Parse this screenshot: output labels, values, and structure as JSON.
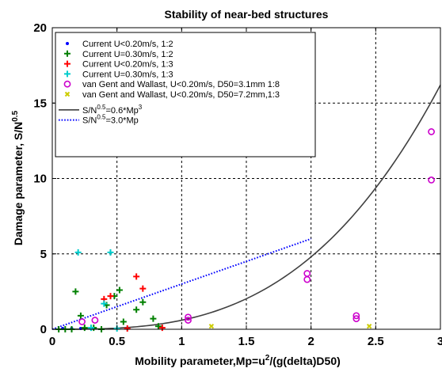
{
  "chart_data": {
    "type": "scatter",
    "title": "Stability of near-bed structures",
    "xlabel": {
      "prefix": "Mobility parameter,Mp=u",
      "sup": "2",
      "suffix": "/(g(delta)D50)"
    },
    "ylabel": {
      "prefix": "Damage parameter, S/N",
      "sup": "0.5"
    },
    "xlim": [
      0,
      3
    ],
    "ylim": [
      0,
      20
    ],
    "xticks": [
      0,
      0.5,
      1,
      1.5,
      2,
      2.5,
      3
    ],
    "xtick_labels": [
      "0",
      "0.5",
      "1",
      "1.5",
      "2",
      "2.5",
      "3"
    ],
    "yticks": [
      0,
      5,
      10,
      15,
      20
    ],
    "ytick_labels": [
      "0",
      "5",
      "10",
      "15",
      "20"
    ],
    "grid": true,
    "legend_position": "top-left",
    "series": [
      {
        "name": "Current U<0.20m/s, 1:2",
        "marker": "dot",
        "color": "#0000ff",
        "points": [
          [
            0.08,
            0.05
          ],
          [
            0.15,
            0.05
          ],
          [
            0.22,
            0.05
          ],
          [
            0.3,
            0.05
          ]
        ]
      },
      {
        "name": "Current U=0.30m/s, 1:2",
        "marker": "plus",
        "color": "#008000",
        "points": [
          [
            0.05,
            0.0
          ],
          [
            0.1,
            0.0
          ],
          [
            0.15,
            0.0
          ],
          [
            0.18,
            2.5
          ],
          [
            0.22,
            0.9
          ],
          [
            0.25,
            0.1
          ],
          [
            0.32,
            0.1
          ],
          [
            0.38,
            0.0
          ],
          [
            0.42,
            1.6
          ],
          [
            0.48,
            2.2
          ],
          [
            0.52,
            2.6
          ],
          [
            0.55,
            0.5
          ],
          [
            0.65,
            1.3
          ],
          [
            0.7,
            1.8
          ],
          [
            0.78,
            0.7
          ],
          [
            0.82,
            0.2
          ]
        ]
      },
      {
        "name": "Current U<0.20m/s, 1:3",
        "marker": "plus",
        "color": "#ff0000",
        "points": [
          [
            0.4,
            2.0
          ],
          [
            0.45,
            2.2
          ],
          [
            0.58,
            0.05
          ],
          [
            0.65,
            3.5
          ],
          [
            0.7,
            2.7
          ],
          [
            0.85,
            0.1
          ]
        ]
      },
      {
        "name": "Current U=0.30m/s, 1:3",
        "marker": "plus",
        "color": "#00cccc",
        "points": [
          [
            0.2,
            5.1
          ],
          [
            0.3,
            0.1
          ],
          [
            0.4,
            1.7
          ],
          [
            0.45,
            5.1
          ],
          [
            0.5,
            0.05
          ]
        ]
      },
      {
        "name": "van Gent and Wallast, U<0.20m/s, D50=3.1mm 1:8",
        "marker": "circle",
        "color": "#cc00cc",
        "points": [
          [
            0.23,
            0.5
          ],
          [
            0.33,
            0.6
          ],
          [
            1.05,
            0.8
          ],
          [
            1.05,
            0.6
          ],
          [
            1.97,
            3.7
          ],
          [
            1.97,
            3.3
          ],
          [
            2.35,
            0.9
          ],
          [
            2.35,
            0.7
          ],
          [
            2.93,
            13.1
          ],
          [
            2.93,
            9.9
          ]
        ]
      },
      {
        "name": "van Gent and Wallast, U<0.20m/s, D50=7.2mm,1:3",
        "marker": "x",
        "color": "#cccc00",
        "points": [
          [
            1.23,
            0.2
          ],
          [
            2.45,
            0.2
          ]
        ]
      },
      {
        "name": "S/N^0.5=0.6*Mp^3",
        "legend_label": {
          "prefix": "S/N",
          "sup": "0.5",
          "suffix": "=0.6*Mp",
          "sup2": "3"
        },
        "marker": "line",
        "color": "#404040",
        "function": "0.6*x^3",
        "x_range": [
          0,
          3
        ]
      },
      {
        "name": "S/N^0.5=3.0*Mp",
        "legend_label": {
          "prefix": "S/N",
          "sup": "0.5",
          "suffix": "=3.0*Mp",
          "sup2": ""
        },
        "marker": "dotted-line",
        "color": "#0000ff",
        "function": "3.0*x",
        "x_range": [
          0,
          2
        ]
      }
    ]
  }
}
